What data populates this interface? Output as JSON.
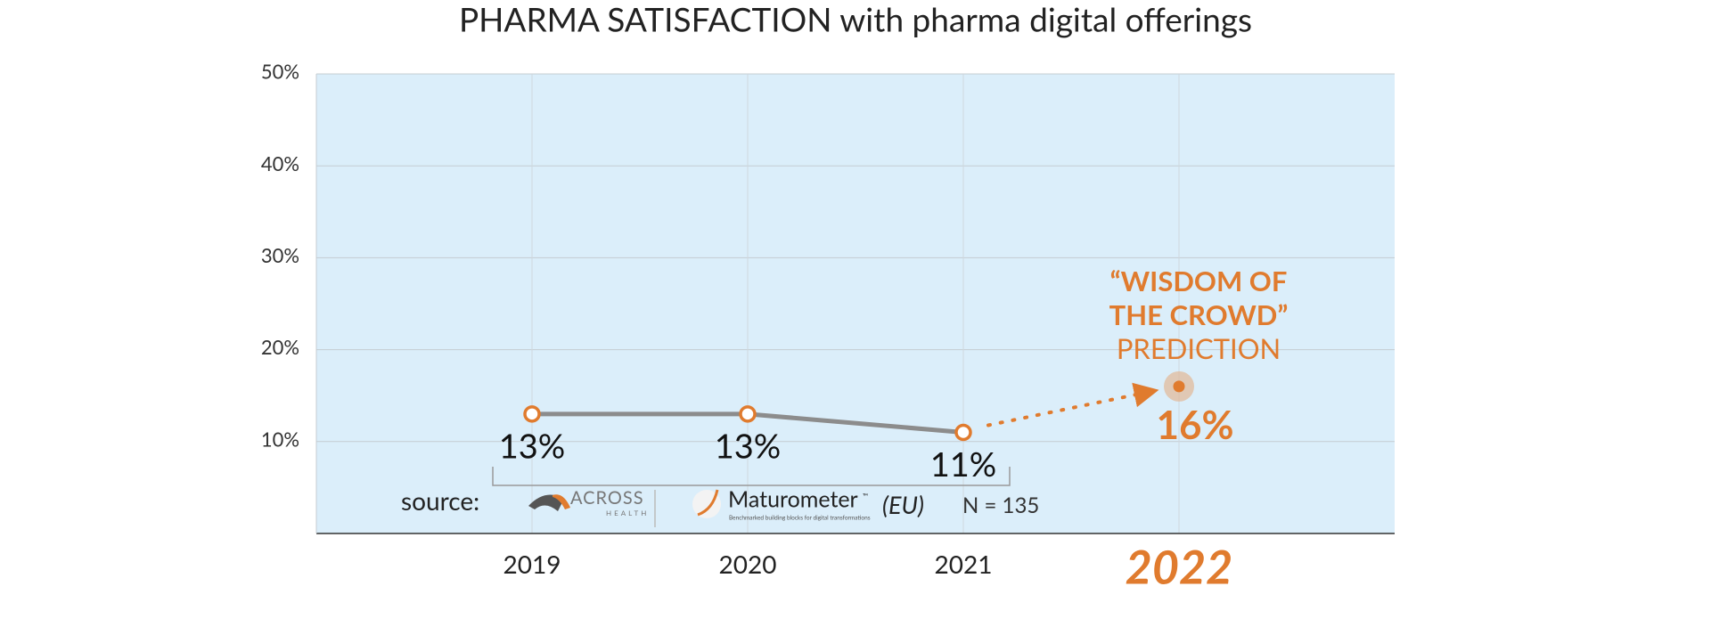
{
  "chart_data": {
    "type": "line",
    "title": "PHARMA SATISFACTION with pharma digital offerings",
    "categories": [
      "2019",
      "2020",
      "2021",
      "2022"
    ],
    "series": [
      {
        "color": "#8c8c8c",
        "marker_color": "#e07b2e",
        "values": [
          13,
          13,
          11,
          null
        ],
        "value_labels": [
          "13%",
          "13%",
          "11%",
          null
        ]
      },
      {
        "color": "#e07b2e",
        "values": [
          null,
          null,
          null,
          16
        ],
        "value_labels": [
          null,
          null,
          null,
          "16%"
        ]
      }
    ],
    "ylim": [
      0,
      50
    ],
    "yticks": [
      {
        "value": 10,
        "label": "10%"
      },
      {
        "value": 20,
        "label": "20%"
      },
      {
        "value": 30,
        "label": "30%"
      },
      {
        "value": 40,
        "label": "40%"
      },
      {
        "value": 50,
        "label": "50%"
      }
    ],
    "grid": true,
    "plot_background": "#dbeefa",
    "annotation": [
      "“WISDOM OF",
      "THE CROWD”",
      "PREDICTION"
    ],
    "source": {
      "label": "source:",
      "logo1": [
        "ACROSS",
        "HEALTH"
      ],
      "logo2": "Maturometer",
      "logo2_mark": "™",
      "logo2_tagline": "Benchmarked building blocks for digital transformations",
      "region": "(EU)",
      "n": "N = 135"
    }
  }
}
